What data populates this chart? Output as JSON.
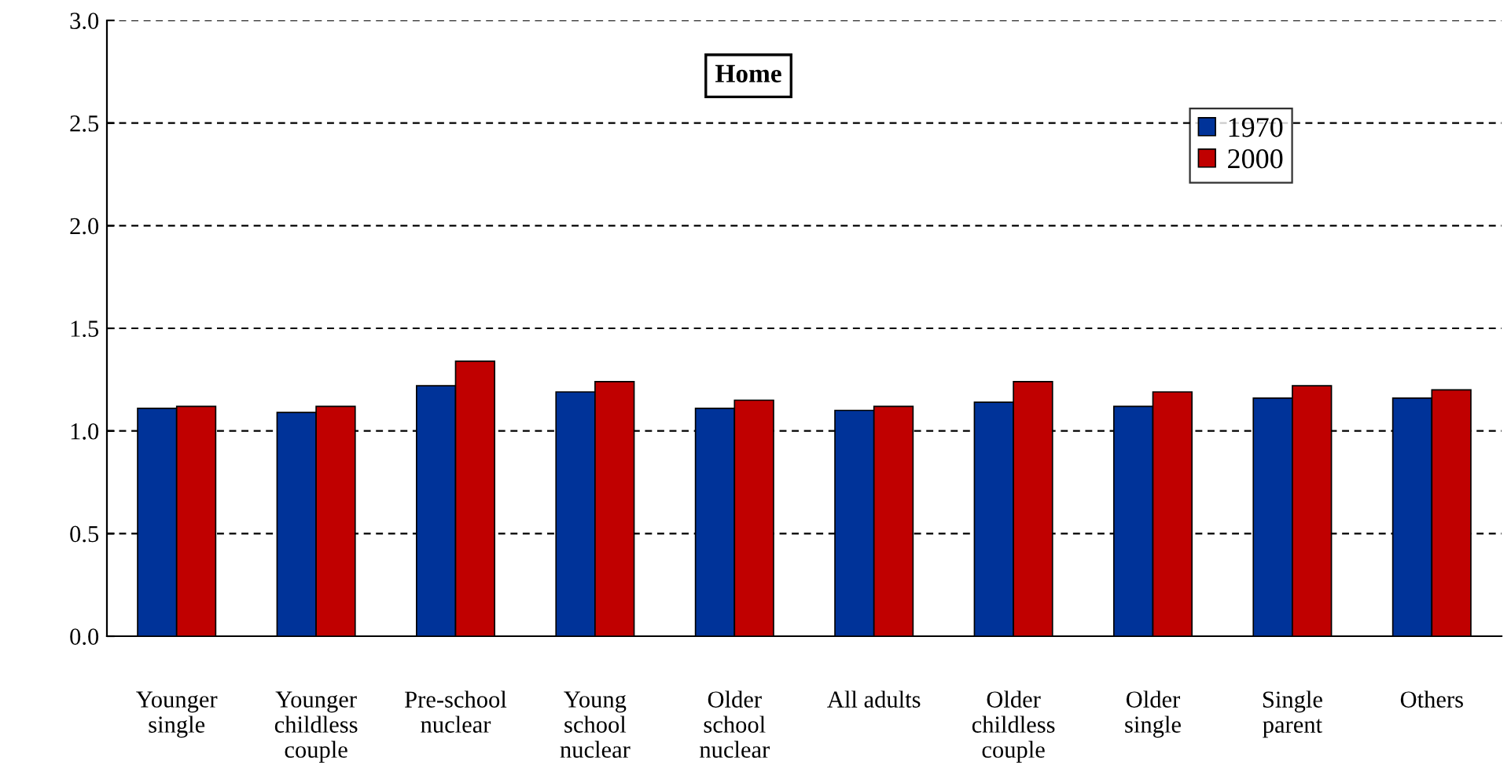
{
  "chart_data": {
    "type": "bar",
    "title": "Home",
    "categories": [
      "Younger\nsingle",
      "Younger\nchildless\ncouple",
      "Pre-school\nnuclear",
      "Young\nschool\nnuclear",
      "Older\nschool\nnuclear",
      "All adults",
      "Older\nchildless\ncouple",
      "Older\nsingle",
      "Single\nparent",
      "Others"
    ],
    "series": [
      {
        "name": "1970",
        "color": "#003399",
        "values": [
          1.11,
          1.09,
          1.22,
          1.19,
          1.11,
          1.1,
          1.14,
          1.12,
          1.16,
          1.16
        ]
      },
      {
        "name": "2000",
        "color": "#c00000",
        "values": [
          1.12,
          1.12,
          1.34,
          1.24,
          1.15,
          1.12,
          1.24,
          1.19,
          1.22,
          1.2
        ]
      }
    ],
    "ylim": [
      0,
      3
    ],
    "yticks": [
      {
        "value": 0,
        "label": "0.0"
      },
      {
        "value": 0.5,
        "label": "0.5"
      },
      {
        "value": 1,
        "label": "1.0"
      },
      {
        "value": 1.5,
        "label": "1.5"
      },
      {
        "value": 2,
        "label": "2.0"
      },
      {
        "value": 2.5,
        "label": "2.5"
      },
      {
        "value": 3,
        "label": "3.0"
      }
    ],
    "grid": "y",
    "legend": "top right"
  }
}
